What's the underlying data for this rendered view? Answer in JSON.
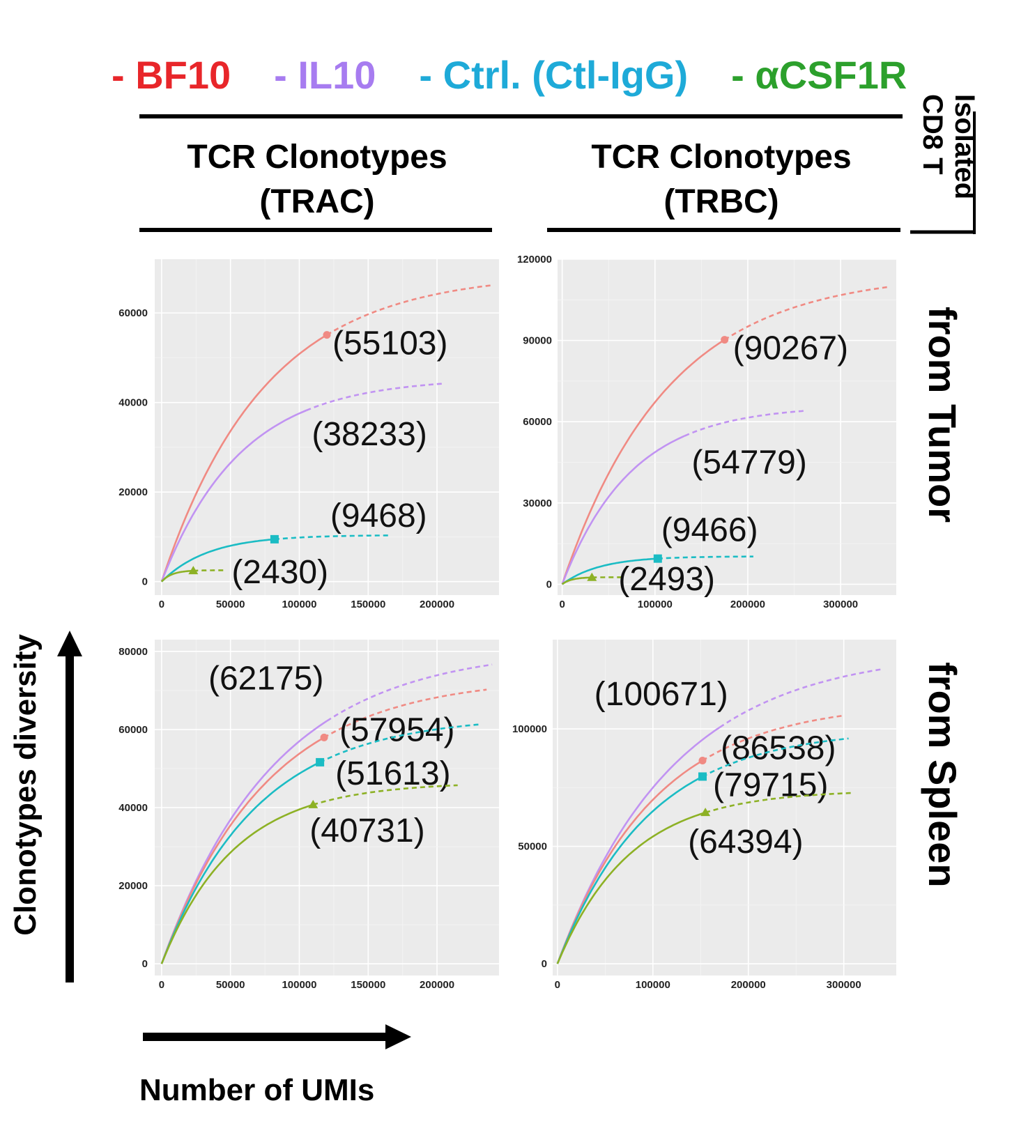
{
  "legend": [
    {
      "label": "- BF10",
      "color": "#e8262a"
    },
    {
      "label": "- IL10",
      "color": "#a77cf0"
    },
    {
      "label": "- Ctrl. (Ctl-IgG)",
      "color": "#1eaad8"
    },
    {
      "label": "- αCSF1R",
      "color": "#2ca02c"
    }
  ],
  "column_headers": [
    "TCR Clonotypes\n(TRAC)",
    "TCR Clonotypes\n(TRBC)"
  ],
  "right_header": "Isolated\nCD8 T",
  "row_labels": [
    "from Tumor",
    "from Spleen"
  ],
  "y_axis_label": "Clonotypes diversity",
  "x_axis_label": "Number of UMIs",
  "series_colors": {
    "BF10": "#f08a83",
    "IL10": "#c193f2",
    "Ctrl": "#1bbcc4",
    "aCSF1R": "#8db125"
  },
  "chart_data": [
    {
      "type": "line",
      "panel": "TRAC from Tumor",
      "xlim": [
        -5000,
        245000
      ],
      "ylim": [
        -3000,
        72000
      ],
      "x_ticks": [
        0,
        50000,
        100000,
        150000,
        200000
      ],
      "y_ticks": [
        0,
        20000,
        40000,
        60000
      ],
      "series": [
        {
          "key": "BF10",
          "sample_x": 120000,
          "sample_y": 55103,
          "max_x": 240000,
          "max_y": 69000,
          "label": "(55103)"
        },
        {
          "key": "IL10",
          "sample_x": 105000,
          "sample_y": 38233,
          "max_x": 205000,
          "max_y": 45500,
          "label": "(38233)"
        },
        {
          "key": "Ctrl",
          "sample_x": 82000,
          "sample_y": 9468,
          "max_x": 165000,
          "max_y": 10400,
          "label": "(9468)"
        },
        {
          "key": "aCSF1R",
          "sample_x": 23000,
          "sample_y": 2430,
          "max_x": 46000,
          "max_y": 2550,
          "label": "(2430)"
        }
      ]
    },
    {
      "type": "line",
      "panel": "TRBC from Tumor",
      "xlim": [
        -5000,
        360000
      ],
      "ylim": [
        -4000,
        120000
      ],
      "x_ticks": [
        0,
        100000,
        200000,
        300000
      ],
      "y_ticks": [
        0,
        30000,
        60000,
        90000,
        120000
      ],
      "series": [
        {
          "key": "BF10",
          "sample_x": 175000,
          "sample_y": 90267,
          "max_x": 350000,
          "max_y": 115000,
          "label": "(90267)"
        },
        {
          "key": "IL10",
          "sample_x": 132000,
          "sample_y": 54779,
          "max_x": 260000,
          "max_y": 66000,
          "label": "(54779)"
        },
        {
          "key": "Ctrl",
          "sample_x": 103000,
          "sample_y": 9466,
          "max_x": 206000,
          "max_y": 10300,
          "label": "(9466)"
        },
        {
          "key": "aCSF1R",
          "sample_x": 32000,
          "sample_y": 2493,
          "max_x": 64000,
          "max_y": 2600,
          "label": "(2493)"
        }
      ]
    },
    {
      "type": "line",
      "panel": "TRAC from Spleen",
      "xlim": [
        -5000,
        245000
      ],
      "ylim": [
        -3000,
        83000
      ],
      "x_ticks": [
        0,
        50000,
        100000,
        150000,
        200000
      ],
      "y_ticks": [
        0,
        20000,
        40000,
        60000,
        80000
      ],
      "series": [
        {
          "key": "IL10",
          "sample_x": 120000,
          "sample_y": 62175,
          "max_x": 240000,
          "max_y": 81000,
          "label": "(62175)"
        },
        {
          "key": "BF10",
          "sample_x": 118000,
          "sample_y": 57954,
          "max_x": 236000,
          "max_y": 73500,
          "label": "(57954)"
        },
        {
          "key": "Ctrl",
          "sample_x": 115000,
          "sample_y": 51613,
          "max_x": 230000,
          "max_y": 63500,
          "label": "(51613)"
        },
        {
          "key": "aCSF1R",
          "sample_x": 110000,
          "sample_y": 40731,
          "max_x": 215000,
          "max_y": 46500,
          "label": "(40731)"
        }
      ]
    },
    {
      "type": "line",
      "panel": "TRBC from Spleen",
      "xlim": [
        -5000,
        355000
      ],
      "ylim": [
        -5000,
        138000
      ],
      "x_ticks": [
        0,
        100000,
        200000,
        300000
      ],
      "y_ticks": [
        0,
        50000,
        100000
      ],
      "series": [
        {
          "key": "IL10",
          "sample_x": 170000,
          "sample_y": 100671,
          "max_x": 340000,
          "max_y": 133500,
          "label": "(100671)"
        },
        {
          "key": "BF10",
          "sample_x": 152000,
          "sample_y": 86538,
          "max_x": 300000,
          "max_y": 111500,
          "label": "(86538)"
        },
        {
          "key": "Ctrl",
          "sample_x": 152000,
          "sample_y": 79715,
          "max_x": 305000,
          "max_y": 100000,
          "label": "(79715)"
        },
        {
          "key": "aCSF1R",
          "sample_x": 155000,
          "sample_y": 64394,
          "max_x": 310000,
          "max_y": 74000,
          "label": "(64394)"
        }
      ]
    }
  ]
}
